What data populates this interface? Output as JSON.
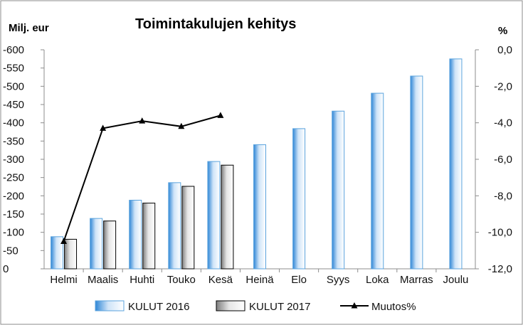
{
  "chart_data": {
    "type": "bar",
    "title": "Toimintakulujen kehitys",
    "ylabel_left": "Milj. eur",
    "ylabel_right": "%",
    "categories": [
      "Helmi",
      "Maalis",
      "Huhti",
      "Touko",
      "Kesä",
      "Heinä",
      "Elo",
      "Syys",
      "Loka",
      "Marras",
      "Joulu"
    ],
    "y_left": {
      "min": 0,
      "max": -600,
      "step": -50,
      "tick_labels": [
        "0",
        "-50",
        "-100",
        "-150",
        "-200",
        "-250",
        "-300",
        "-350",
        "-400",
        "-450",
        "-500",
        "-550",
        "-600"
      ]
    },
    "y_right": {
      "min": -12,
      "max": 0,
      "step": 2,
      "tick_labels": [
        "-12,0",
        "-10,0",
        "-8,0",
        "-6,0",
        "-4,0",
        "-2,0",
        "0,0"
      ]
    },
    "series": [
      {
        "name": "KULUT 2016",
        "type": "bar",
        "axis": "left",
        "color": "#5ba3dd",
        "values": [
          -88,
          -138,
          -188,
          -236,
          -294,
          -340,
          -384,
          -432,
          -481,
          -528,
          -575
        ]
      },
      {
        "name": "KULUT 2017",
        "type": "bar",
        "axis": "left",
        "color": "#9a9a9a",
        "values": [
          -81,
          -131,
          -180,
          -226,
          -284,
          null,
          null,
          null,
          null,
          null,
          null
        ]
      },
      {
        "name": "Muutos%",
        "type": "line",
        "axis": "right",
        "color": "#000000",
        "values": [
          -10.5,
          -4.3,
          -3.9,
          -4.2,
          -3.6,
          null,
          null,
          null,
          null,
          null,
          null
        ]
      }
    ],
    "grid": false,
    "legend_position": "bottom"
  }
}
